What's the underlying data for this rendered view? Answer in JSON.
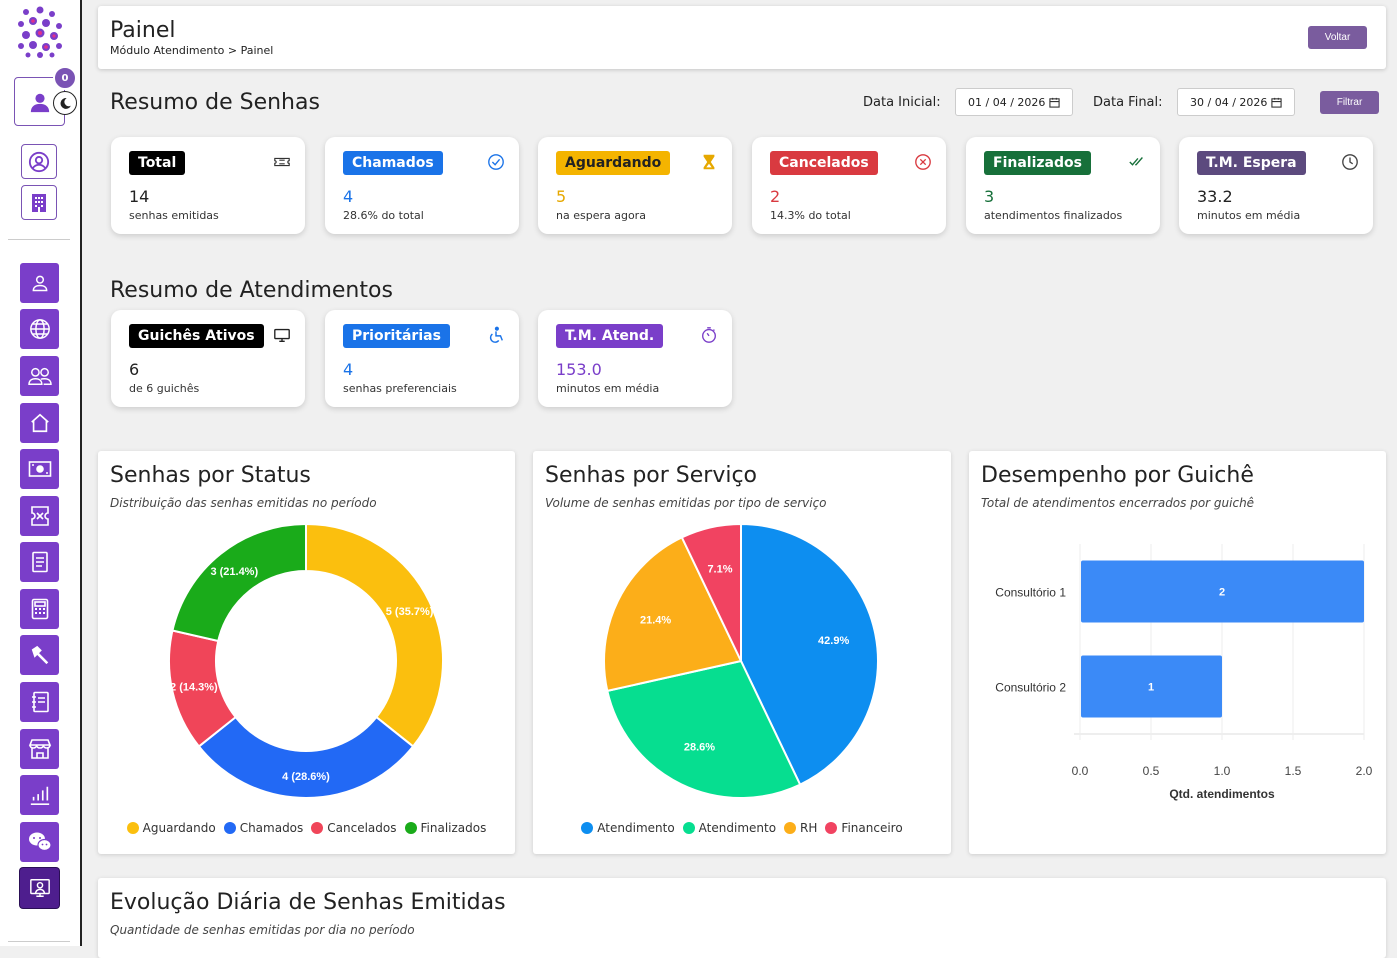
{
  "header": {
    "title": "Painel",
    "breadcrumb": "Módulo Atendimento > Painel",
    "back_label": "Voltar"
  },
  "sidebar": {
    "notification_count": "0"
  },
  "senhas": {
    "title": "Resumo de Senhas",
    "start_label": "Data Inicial:",
    "start_value": "01 / 04 / 2026",
    "end_label": "Data Final:",
    "end_value": "30 / 04 / 2026",
    "filter_label": "Filtrar",
    "cards": [
      {
        "label": "Total",
        "value": "14",
        "sub": "senhas emitidas",
        "color": "#000000",
        "icon": "ticket-icon"
      },
      {
        "label": "Chamados",
        "value": "4",
        "sub": "28.6% do total",
        "color": "#1a73e8",
        "icon": "check-circle-icon"
      },
      {
        "label": "Aguardando",
        "value": "5",
        "sub": "na espera agora",
        "color": "#f4b400",
        "icon": "hourglass-icon"
      },
      {
        "label": "Cancelados",
        "value": "2",
        "sub": "14.3% do total",
        "color": "#d93a40",
        "icon": "x-circle-icon"
      },
      {
        "label": "Finalizados",
        "value": "3",
        "sub": "atendimentos finalizados",
        "color": "#17703a",
        "icon": "double-check-icon"
      },
      {
        "label": "T.M. Espera",
        "value": "33.2",
        "sub": "minutos em média",
        "color": "#5c4a7e",
        "icon": "clock-icon"
      }
    ]
  },
  "atendimentos": {
    "title": "Resumo de Atendimentos",
    "cards": [
      {
        "label": "Guichês Ativos",
        "value": "6",
        "sub": "de 6 guichês",
        "color": "#000000",
        "icon": "monitor-icon"
      },
      {
        "label": "Prioritárias",
        "value": "4",
        "sub": "senhas preferenciais",
        "color": "#1a73e8",
        "icon": "accessibility-icon"
      },
      {
        "label": "T.M. Atend.",
        "value": "153.0",
        "sub": "minutos em média",
        "color": "#7a3ec9",
        "icon": "stopwatch-icon"
      }
    ]
  },
  "chart_status": {
    "title": "Senhas por Status",
    "subtitle": "Distribuição das senhas emitidas no período"
  },
  "chart_servico": {
    "title": "Senhas por Serviço",
    "subtitle": "Volume de senhas emitidas por tipo de serviço"
  },
  "chart_guiche": {
    "title": "Desempenho por Guichê",
    "subtitle": "Total de atendimentos encerrados por guichê"
  },
  "evolucao": {
    "title": "Evolução Diária de Senhas Emitidas",
    "subtitle": "Quantidade de senhas emitidas por dia no período"
  },
  "chart_data": [
    {
      "type": "pie",
      "variant": "doughnut",
      "categories": [
        "Aguardando",
        "Chamados",
        "Cancelados",
        "Finalizados"
      ],
      "values": [
        5,
        4,
        2,
        3
      ],
      "labels": [
        "5 (35.7%)",
        "4 (28.6%)",
        "2 (14.3%)",
        "3 (21.4%)"
      ],
      "colors": [
        "#fbbf0e",
        "#2269f5",
        "#f04559",
        "#1aab1a"
      ],
      "legend": "bottom"
    },
    {
      "type": "pie",
      "categories": [
        "Atendimento",
        "Atendimento",
        "RH",
        "Financeiro"
      ],
      "values": [
        42.9,
        28.6,
        21.4,
        7.1
      ],
      "labels": [
        "42.9%",
        "28.6%",
        "21.4%",
        "7.1%"
      ],
      "colors": [
        "#0d8ef0",
        "#06de90",
        "#fcae19",
        "#f14361"
      ],
      "legend": "bottom"
    },
    {
      "type": "bar",
      "orientation": "horizontal",
      "categories": [
        "Consultório 1",
        "Consultório 2"
      ],
      "values": [
        2,
        1
      ],
      "xlabel": "Qtd. atendimentos",
      "xlim": [
        0,
        2
      ],
      "xticks": [
        "0.0",
        "0.5",
        "1.0",
        "1.5",
        "2.0"
      ],
      "colors": [
        "#3b8af7"
      ]
    }
  ]
}
